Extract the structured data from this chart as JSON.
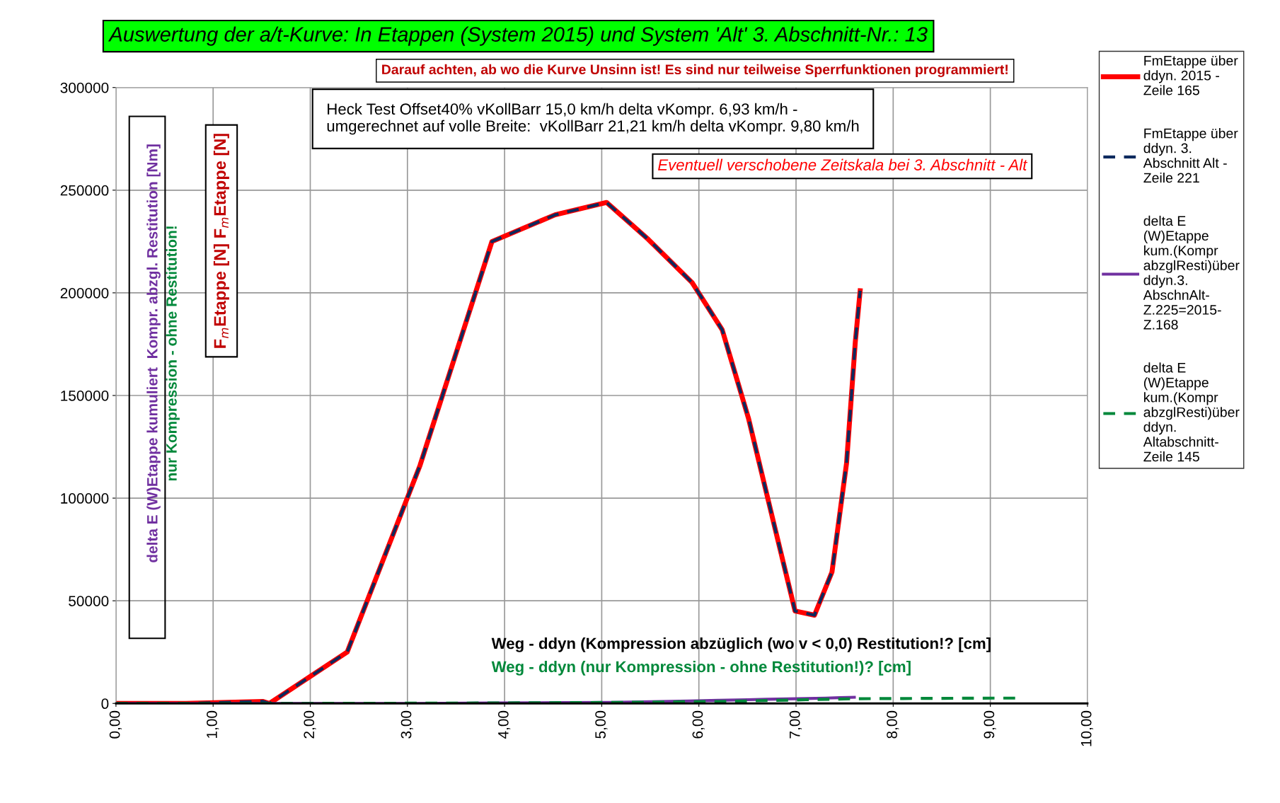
{
  "chart_data": {
    "type": "line",
    "title": "Auswertung der a/t-Kurve: In Etappen (System 2015) und System 'Alt' 3. Abschnitt-Nr.: 13",
    "subtitle": "Darauf achten, ab wo die Kurve Unsinn ist! Es sind nur teilweise Sperrfunktionen programmiert!",
    "xlabel": "Weg - ddyn (Kompression abzüglich (wo v < 0,0) Restitution!? [cm]",
    "ylabel": "F$_{m}$Etappe [N] F$_{m}$Etappe [N]",
    "annotations": [
      "Heck Test Offset40% vKollBarr 15,0 km/h delta vKompr. 6,93 km/h -\numgerechnet auf volle Breite:  vKollBarr 21,21 km/h delta vKompr. 9,80 km/h",
      "Eventuell verschobene Zeitskala bei 3. Abschnitt - Alt",
      "delta E (W)Etappe kumuliert  Kompr. abzgl. Restitution [Nm]",
      "nur Kompression - ohne Restitution!",
      "Weg - ddyn (nur Kompression - ohne Restitution!)? [cm]"
    ],
    "series": [
      {
        "name": "FmEtappe über ddyn. 2015 -Zeile 165",
        "color": "#ff0000",
        "line_style": "solid",
        "x": [
          0,
          0.72,
          1.51,
          1.58,
          2.38,
          3.13,
          3.87,
          4.52,
          5.05,
          5.48,
          5.93,
          6.24,
          6.51,
          6.78,
          6.99,
          7.19,
          7.37,
          7.52,
          7.61,
          7.66
        ],
        "values": [
          0,
          0,
          1000,
          0,
          25000,
          116000,
          225000,
          238000,
          244000,
          226000,
          205000,
          182000,
          139000,
          86000,
          45000,
          43000,
          64000,
          117000,
          176000,
          201000
        ]
      },
      {
        "name": "FmEtappe über ddyn. 3. Abschnitt Alt - Zeile 221",
        "color": "#0d2a5e",
        "line_style": "dashed",
        "x": [
          0,
          0.72,
          1.51,
          1.58,
          2.38,
          3.13,
          3.87,
          4.52,
          5.05,
          5.48,
          5.93,
          6.24,
          6.51,
          6.78,
          6.99,
          7.19,
          7.37,
          7.52,
          7.61,
          7.66
        ],
        "values": [
          0,
          0,
          1000,
          0,
          25000,
          116000,
          225000,
          238000,
          244000,
          226000,
          205000,
          182000,
          139000,
          86000,
          45000,
          43000,
          64000,
          117000,
          176000,
          201000
        ]
      },
      {
        "name": "delta E (W)Etappe kum.(Kompr abzglResti)über ddyn.3. AbschnAlt-Z.225=2015-Z.168",
        "color": "#7030a0",
        "line_style": "solid",
        "x": [
          0,
          0.72,
          1.6,
          2.3,
          3.1,
          3.9,
          4.6,
          5.1,
          5.5,
          5.9,
          6.2,
          6.5,
          6.7,
          6.9,
          7.1,
          7.3,
          7.45,
          7.6
        ],
        "values": [
          0,
          0,
          0,
          0,
          0,
          200,
          400,
          500,
          800,
          1200,
          1500,
          1800,
          2000,
          2200,
          2400,
          2600,
          2800,
          3000
        ]
      },
      {
        "name": "delta E (W)Etappe kum.(Kompr abzglResti)über ddyn. Altabschnitt-Zeile 145",
        "color": "#00883a",
        "line_style": "dashed",
        "x": [
          0,
          1.9,
          3.8,
          5.2,
          6.3,
          7.1,
          7.6,
          8.1,
          9.05,
          9.3
        ],
        "values": [
          0,
          0,
          200,
          500,
          1000,
          1800,
          2300,
          2400,
          2600,
          2600
        ]
      }
    ],
    "xlim": [
      0,
      10
    ],
    "xticks": [
      {
        "value": 0,
        "label": "0,00"
      },
      {
        "value": 1,
        "label": "1,00"
      },
      {
        "value": 2,
        "label": "2,00"
      },
      {
        "value": 3,
        "label": "3,00"
      },
      {
        "value": 4,
        "label": "4,00"
      },
      {
        "value": 5,
        "label": "5,00"
      },
      {
        "value": 6,
        "label": "6,00"
      },
      {
        "value": 7,
        "label": "7,00"
      },
      {
        "value": 8,
        "label": "8,00"
      },
      {
        "value": 9,
        "label": "9,00"
      },
      {
        "value": 10,
        "label": "10,00"
      }
    ],
    "ylim": [
      0,
      300000
    ],
    "yticks": [
      0,
      50000,
      100000,
      150000,
      200000,
      250000,
      300000
    ],
    "grid": true,
    "legend": "right"
  }
}
